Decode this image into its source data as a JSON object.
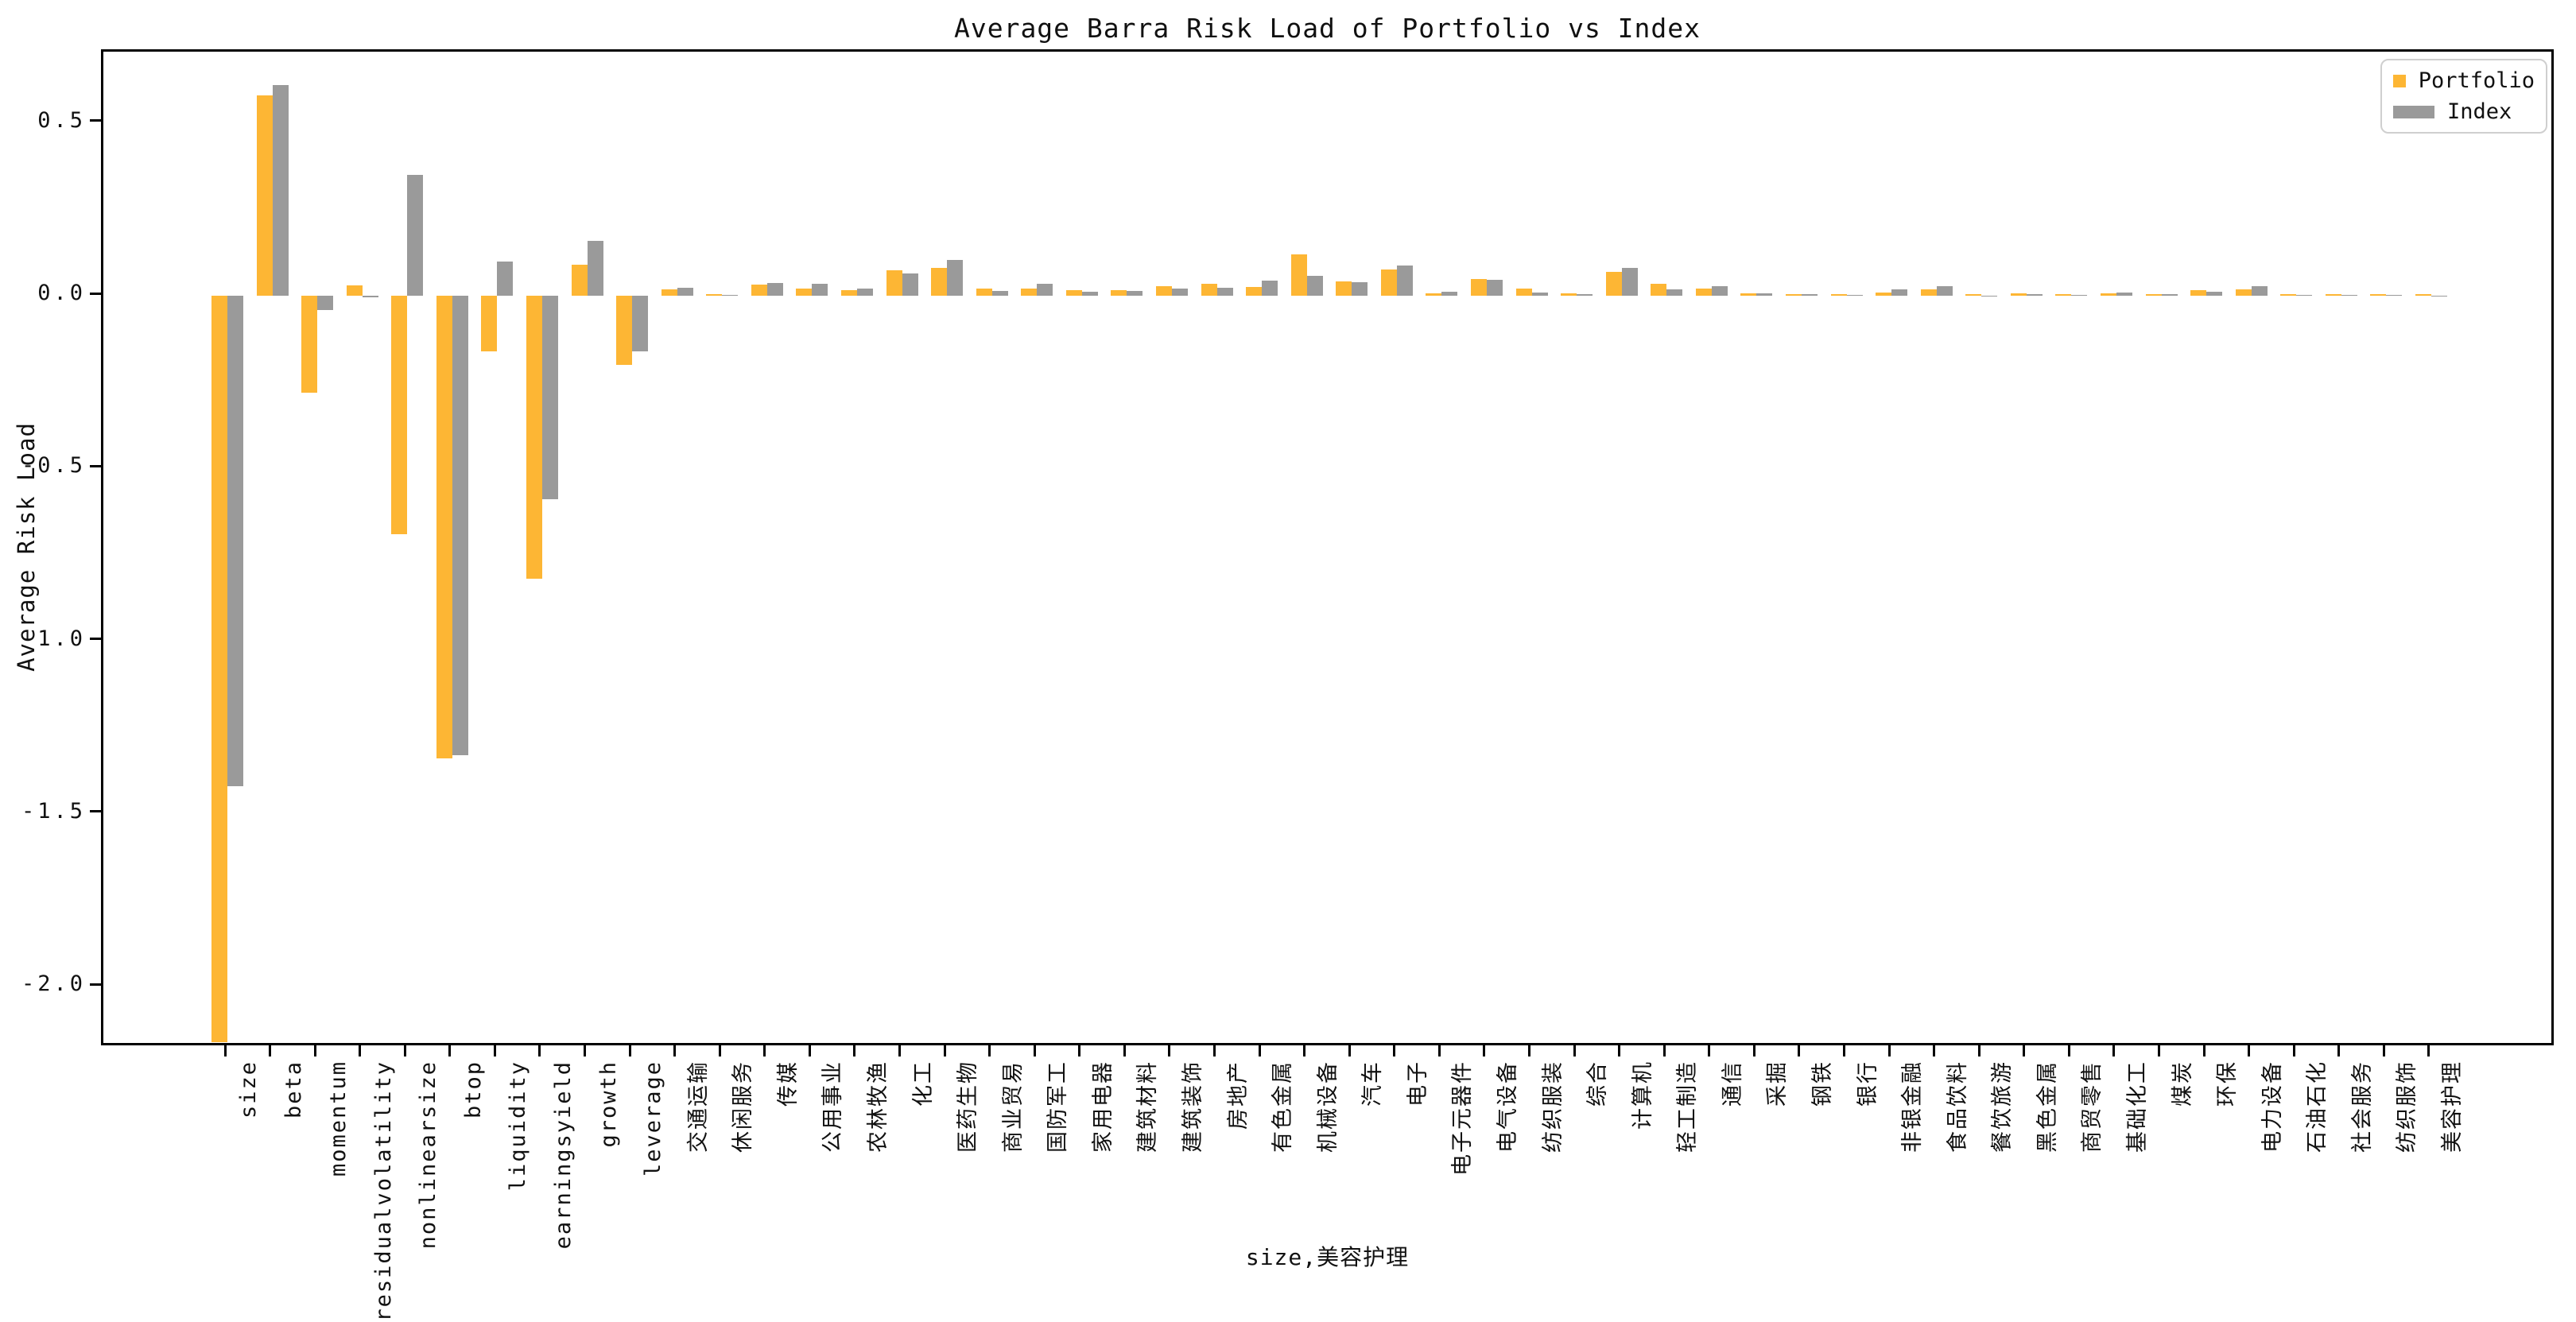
{
  "title": "Average Barra Risk Load of Portfolio vs Index",
  "xaxis_label": "size,美容护理",
  "yaxis_label": "Average Risk Load",
  "legend": {
    "portfolio_label": "Portfolio",
    "index_label": "Index"
  },
  "colors": {
    "portfolio": "#FDB634",
    "index": "#9A9A9A",
    "spine": "#000000",
    "legend_border": "#cfcfcf"
  },
  "chart_data": {
    "type": "bar",
    "title": "Average Barra Risk Load of Portfolio vs Index",
    "xlabel": "size,美容护理",
    "ylabel": "Average Risk Load",
    "ylim": [
      -2.177,
      0.707
    ],
    "grid": false,
    "legend_position": "upper right",
    "yticks": [
      0.5,
      0.0,
      -0.5,
      -1.0,
      -1.5,
      -2.0
    ],
    "ytick_labels": [
      "0.5",
      "0.0",
      "-0.5",
      "-1.0",
      "-1.5",
      "-2.0"
    ],
    "categories": [
      "size",
      "beta",
      "momentum",
      "residualvolatility",
      "nonlinearsize",
      "btop",
      "liquidity",
      "earningsyield",
      "growth",
      "leverage",
      "交通运输",
      "休闲服务",
      "传媒",
      "公用事业",
      "农林牧渔",
      "化工",
      "医药生物",
      "商业贸易",
      "国防军工",
      "家用电器",
      "建筑材料",
      "建筑装饰",
      "房地产",
      "有色金属",
      "机械设备",
      "汽车",
      "电子",
      "电子元器件",
      "电气设备",
      "纺织服装",
      "综合",
      "计算机",
      "轻工制造",
      "通信",
      "采掘",
      "钢铁",
      "银行",
      "非银金融",
      "食品饮料",
      "餐饮旅游",
      "黑色金属",
      "商贸零售",
      "基础化工",
      "煤炭",
      "环保",
      "电力设备",
      "石油石化",
      "社会服务",
      "纺织服饰",
      "美容护理"
    ],
    "series": [
      {
        "name": "Portfolio",
        "color": "#FDB634",
        "values": [
          -2.16,
          0.58,
          -0.28,
          0.03,
          -0.69,
          -1.34,
          -0.16,
          -0.82,
          0.09,
          -0.2,
          0.018,
          0.005,
          0.032,
          0.021,
          0.017,
          0.075,
          0.08,
          0.02,
          0.02,
          0.016,
          0.017,
          0.029,
          0.035,
          0.025,
          0.12,
          0.042,
          0.077,
          0.008,
          0.048,
          0.02,
          0.007,
          0.069,
          0.034,
          0.022,
          0.007,
          0.004,
          0.004,
          0.01,
          0.018,
          0.004,
          0.008,
          0.004,
          0.008,
          0.005,
          0.016,
          0.019,
          0.005,
          0.006,
          0.004,
          0.004
        ]
      },
      {
        "name": "Index",
        "color": "#9A9A9A",
        "values": [
          -1.42,
          0.61,
          -0.04,
          -0.005,
          0.35,
          -1.33,
          0.1,
          -0.59,
          0.16,
          -0.16,
          0.024,
          0.002,
          0.038,
          0.035,
          0.022,
          0.064,
          0.104,
          0.014,
          0.036,
          0.013,
          0.015,
          0.022,
          0.024,
          0.045,
          0.058,
          0.039,
          0.088,
          0.012,
          0.046,
          0.01,
          0.004,
          0.08,
          0.018,
          0.029,
          0.007,
          0.005,
          0.002,
          0.018,
          0.028,
          0.001,
          0.005,
          0.003,
          0.009,
          0.004,
          0.011,
          0.028,
          0.003,
          0.002,
          0.002,
          0.001
        ]
      }
    ]
  }
}
